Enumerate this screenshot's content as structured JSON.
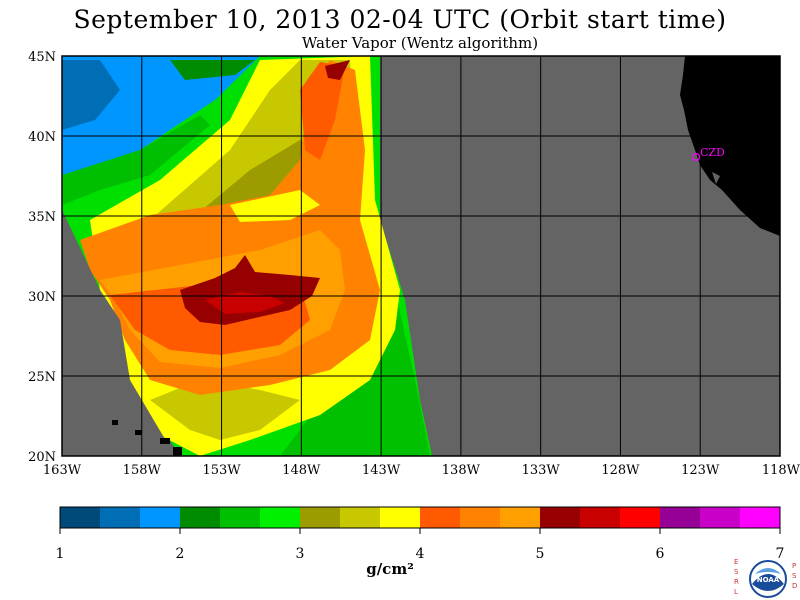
{
  "title": "September 10, 2013  02-04 UTC  (Orbit start time)",
  "subtitle": "Water Vapor (Wentz algorithm)",
  "map": {
    "lat_labels": [
      "45N",
      "40N",
      "35N",
      "30N",
      "25N",
      "20N"
    ],
    "lon_labels": [
      "163W",
      "158W",
      "153W",
      "148W",
      "143W",
      "138W",
      "133W",
      "128W",
      "123W",
      "118W"
    ],
    "lon_range": [
      -163,
      -118
    ],
    "lat_range": [
      20,
      45
    ],
    "station_label": "CZD",
    "colors": {
      "land": "#000000",
      "no_data": "#646464",
      "station": "#ff00ff"
    }
  },
  "colorbar": {
    "unit": "g/cm²",
    "tick_labels": [
      "1",
      "2",
      "3",
      "4",
      "5",
      "6",
      "7"
    ],
    "colors": [
      "#004a7a",
      "#006eb4",
      "#0096ff",
      "#008c00",
      "#00be00",
      "#00f000",
      "#9c9c00",
      "#c8c800",
      "#ffff00",
      "#ff5a00",
      "#ff8200",
      "#ffa000",
      "#960000",
      "#c80000",
      "#ff0000",
      "#960096",
      "#c800c8",
      "#ff00ff"
    ]
  },
  "logo": {
    "left_letters": [
      "E",
      "S",
      "R",
      "L"
    ],
    "right_letters": [
      "P",
      "S",
      "D"
    ],
    "center_text": "NOAA"
  }
}
